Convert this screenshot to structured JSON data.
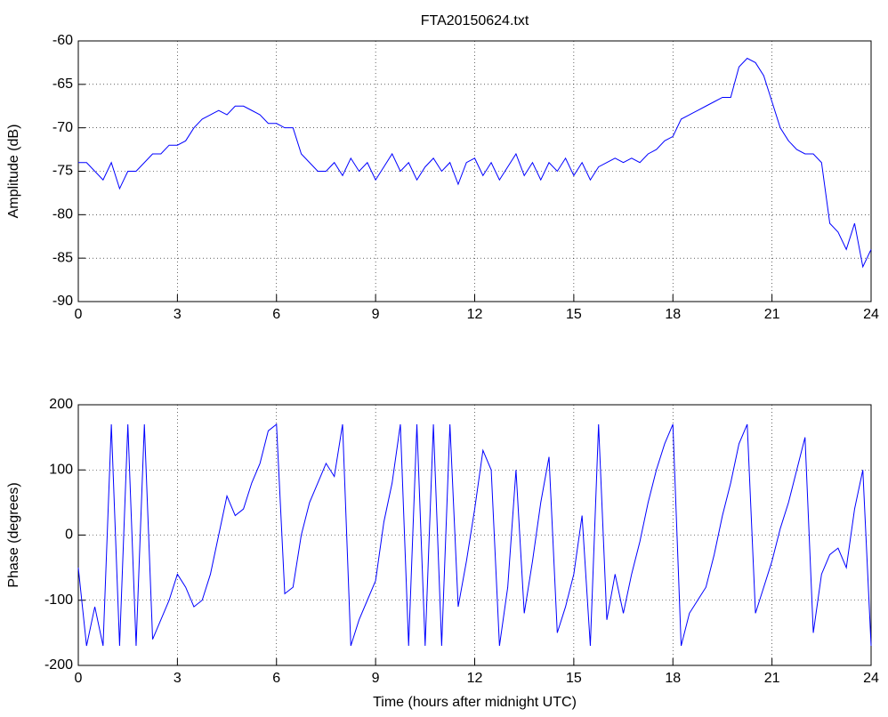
{
  "chart_data": [
    {
      "type": "line",
      "title": "FTA20150624.txt",
      "ylabel": "Amplitude (dB)",
      "color": "#0000ff",
      "grid": true,
      "x": [
        0,
        0.25,
        0.5,
        0.75,
        1,
        1.25,
        1.5,
        1.75,
        2,
        2.25,
        2.5,
        2.75,
        3,
        3.25,
        3.5,
        3.75,
        4,
        4.25,
        4.5,
        4.75,
        5,
        5.25,
        5.5,
        5.75,
        6,
        6.25,
        6.5,
        6.75,
        7,
        7.25,
        7.5,
        7.75,
        8,
        8.25,
        8.5,
        8.75,
        9,
        9.25,
        9.5,
        9.75,
        10,
        10.25,
        10.5,
        10.75,
        11,
        11.25,
        11.5,
        11.75,
        12,
        12.25,
        12.5,
        12.75,
        13,
        13.25,
        13.5,
        13.75,
        14,
        14.25,
        14.5,
        14.75,
        15,
        15.25,
        15.5,
        15.75,
        16,
        16.25,
        16.5,
        16.75,
        17,
        17.25,
        17.5,
        17.75,
        18,
        18.25,
        18.5,
        18.75,
        19,
        19.25,
        19.5,
        19.75,
        20,
        20.25,
        20.5,
        20.75,
        21,
        21.25,
        21.5,
        21.75,
        22,
        22.25,
        22.5,
        22.75,
        23,
        23.25,
        23.5,
        23.75,
        24
      ],
      "values": [
        -74,
        -74,
        -75,
        -76,
        -74,
        -77,
        -75,
        -75,
        -74,
        -73,
        -73,
        -72,
        -72,
        -71.5,
        -70,
        -69,
        -68.5,
        -68,
        -68.5,
        -67.5,
        -67.5,
        -68,
        -68.5,
        -69.5,
        -69.5,
        -70,
        -70,
        -73,
        -74,
        -75,
        -75,
        -74,
        -75.5,
        -73.5,
        -75,
        -74,
        -76,
        -74.5,
        -73,
        -75,
        -74,
        -76,
        -74.5,
        -73.5,
        -75,
        -74,
        -76.5,
        -74,
        -73.5,
        -75.5,
        -74,
        -76,
        -74.5,
        -73,
        -75.5,
        -74,
        -76,
        -74,
        -75,
        -73.5,
        -75.5,
        -74,
        -76,
        -74.5,
        -74,
        -73.5,
        -74,
        -73.5,
        -74,
        -73,
        -72.5,
        -71.5,
        -71,
        -69,
        -68.5,
        -68,
        -67.5,
        -67,
        -66.5,
        -66.5,
        -63,
        -62,
        -62.5,
        -64,
        -67,
        -70,
        -71.5,
        -72.5,
        -73,
        -73,
        -74,
        -81,
        -82,
        -84,
        -81,
        -86,
        -84
      ],
      "xlim": [
        0,
        24
      ],
      "xticks": [
        0,
        3,
        6,
        9,
        12,
        15,
        18,
        21,
        24
      ],
      "ylim": [
        -90,
        -60
      ],
      "yticks": [
        -90,
        -85,
        -80,
        -75,
        -70,
        -65,
        -60
      ]
    },
    {
      "type": "line",
      "ylabel": "Phase (degrees)",
      "xlabel": "Time (hours after midnight UTC)",
      "color": "#0000ff",
      "grid": true,
      "x": [
        0,
        0.25,
        0.5,
        0.75,
        1,
        1.25,
        1.5,
        1.75,
        2,
        2.25,
        2.5,
        2.75,
        3,
        3.25,
        3.5,
        3.75,
        4,
        4.25,
        4.5,
        4.75,
        5,
        5.25,
        5.5,
        5.75,
        6,
        6.25,
        6.5,
        6.75,
        7,
        7.25,
        7.5,
        7.75,
        8,
        8.25,
        8.5,
        8.75,
        9,
        9.25,
        9.5,
        9.75,
        10,
        10.25,
        10.5,
        10.75,
        11,
        11.25,
        11.5,
        11.75,
        12,
        12.25,
        12.5,
        12.75,
        13,
        13.25,
        13.5,
        13.75,
        14,
        14.25,
        14.5,
        14.75,
        15,
        15.25,
        15.5,
        15.75,
        16,
        16.25,
        16.5,
        16.75,
        17,
        17.25,
        17.5,
        17.75,
        18,
        18.25,
        18.5,
        18.75,
        19,
        19.25,
        19.5,
        19.75,
        20,
        20.25,
        20.5,
        20.75,
        21,
        21.25,
        21.5,
        21.75,
        22,
        22.25,
        22.5,
        22.75,
        23,
        23.25,
        23.5,
        23.75,
        24
      ],
      "values": [
        -50,
        -170,
        -110,
        -170,
        170,
        -170,
        170,
        -170,
        170,
        -160,
        -130,
        -100,
        -60,
        -80,
        -110,
        -100,
        -60,
        0,
        60,
        30,
        40,
        80,
        110,
        160,
        170,
        -90,
        -80,
        0,
        50,
        80,
        110,
        90,
        170,
        -170,
        -130,
        -100,
        -70,
        20,
        80,
        170,
        -170,
        170,
        -170,
        170,
        -170,
        170,
        -110,
        -40,
        40,
        130,
        100,
        -170,
        -80,
        100,
        -120,
        -40,
        50,
        120,
        -150,
        -110,
        -60,
        30,
        -170,
        170,
        -130,
        -60,
        -120,
        -60,
        -10,
        50,
        100,
        140,
        170,
        -170,
        -120,
        -100,
        -80,
        -30,
        30,
        80,
        140,
        170,
        -120,
        -80,
        -40,
        10,
        50,
        100,
        150,
        -150,
        -60,
        -30,
        -20,
        -50,
        40,
        100,
        -170
      ],
      "xlim": [
        0,
        24
      ],
      "xticks": [
        0,
        3,
        6,
        9,
        12,
        15,
        18,
        21,
        24
      ],
      "ylim": [
        -200,
        200
      ],
      "yticks": [
        -200,
        -100,
        0,
        100,
        200
      ]
    }
  ]
}
